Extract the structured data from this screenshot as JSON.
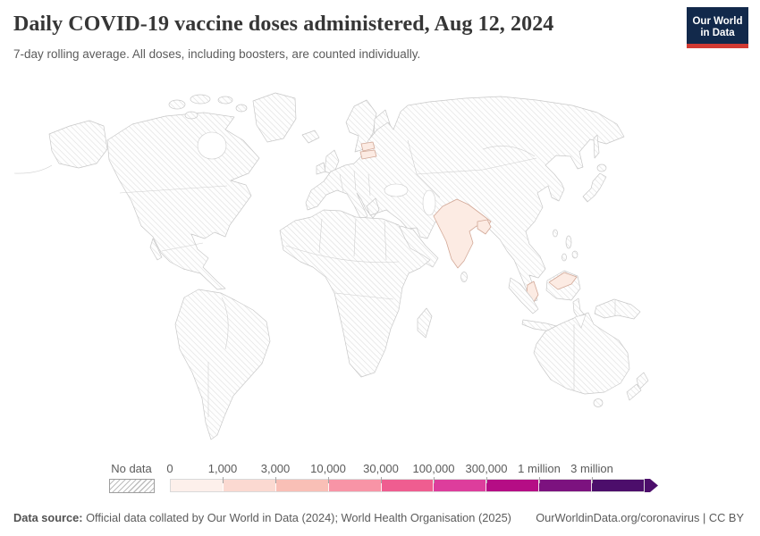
{
  "header": {
    "title": "Daily COVID-19 vaccine doses administered, Aug 12, 2024",
    "subtitle": "7-day rolling average. All doses, including boosters, are counted individually."
  },
  "logo": {
    "line1": "Our World",
    "line2": "in Data",
    "bg": "#12294b",
    "accent": "#d23a32"
  },
  "legend": {
    "no_data_label": "No data",
    "tick_labels": [
      "0",
      "1,000",
      "3,000",
      "10,000",
      "30,000",
      "100,000",
      "300,000",
      "1 million",
      "3 million"
    ],
    "bin_colors": [
      "#fdf0eb",
      "#fbd9d1",
      "#f9bfb6",
      "#f894a6",
      "#ef5d90",
      "#dd3d9c",
      "#b50d85",
      "#7c127f",
      "#4c0e6b"
    ]
  },
  "map": {
    "highlight_fill": "#fcebe3",
    "highlight_stroke": "#d2a897",
    "no_data_pattern": "diagonal-hatch",
    "hatch_line_color": "#dcdcdc",
    "land_border_color": "#c8c8c8"
  },
  "footer": {
    "source_label": "Data source:",
    "source_text": "Official data collated by Our World in Data (2024); World Health Organisation (2025)",
    "link_text": "OurWorldinData.org/coronavirus | CC BY"
  },
  "chart_data": {
    "type": "choropleth_map",
    "title": "Daily COVID-19 vaccine doses administered",
    "date": "Aug 12, 2024",
    "subtitle": "7-day rolling average. All doses, including boosters, are counted individually.",
    "legend_bins": [
      {
        "label": "0",
        "color": "#fdf0eb"
      },
      {
        "label": "1,000",
        "color": "#fbd9d1"
      },
      {
        "label": "3,000",
        "color": "#f9bfb6"
      },
      {
        "label": "10,000",
        "color": "#f894a6"
      },
      {
        "label": "30,000",
        "color": "#ef5d90"
      },
      {
        "label": "100,000",
        "color": "#dd3d9c"
      },
      {
        "label": "300,000",
        "color": "#b50d85"
      },
      {
        "label": "1 million",
        "color": "#7c127f"
      },
      {
        "label": "3 million",
        "color": "#4c0e6b"
      }
    ],
    "highlighted_countries": [
      {
        "name": "India",
        "bin": "0–1,000"
      },
      {
        "name": "Bangladesh",
        "bin": "0–1,000"
      },
      {
        "name": "Malaysia",
        "bin": "0–1,000"
      },
      {
        "name": "Estonia",
        "bin": "0–1,000"
      },
      {
        "name": "Latvia",
        "bin": "0–1,000"
      }
    ],
    "no_data_note": "All other countries shown with hatched pattern (No data)"
  }
}
